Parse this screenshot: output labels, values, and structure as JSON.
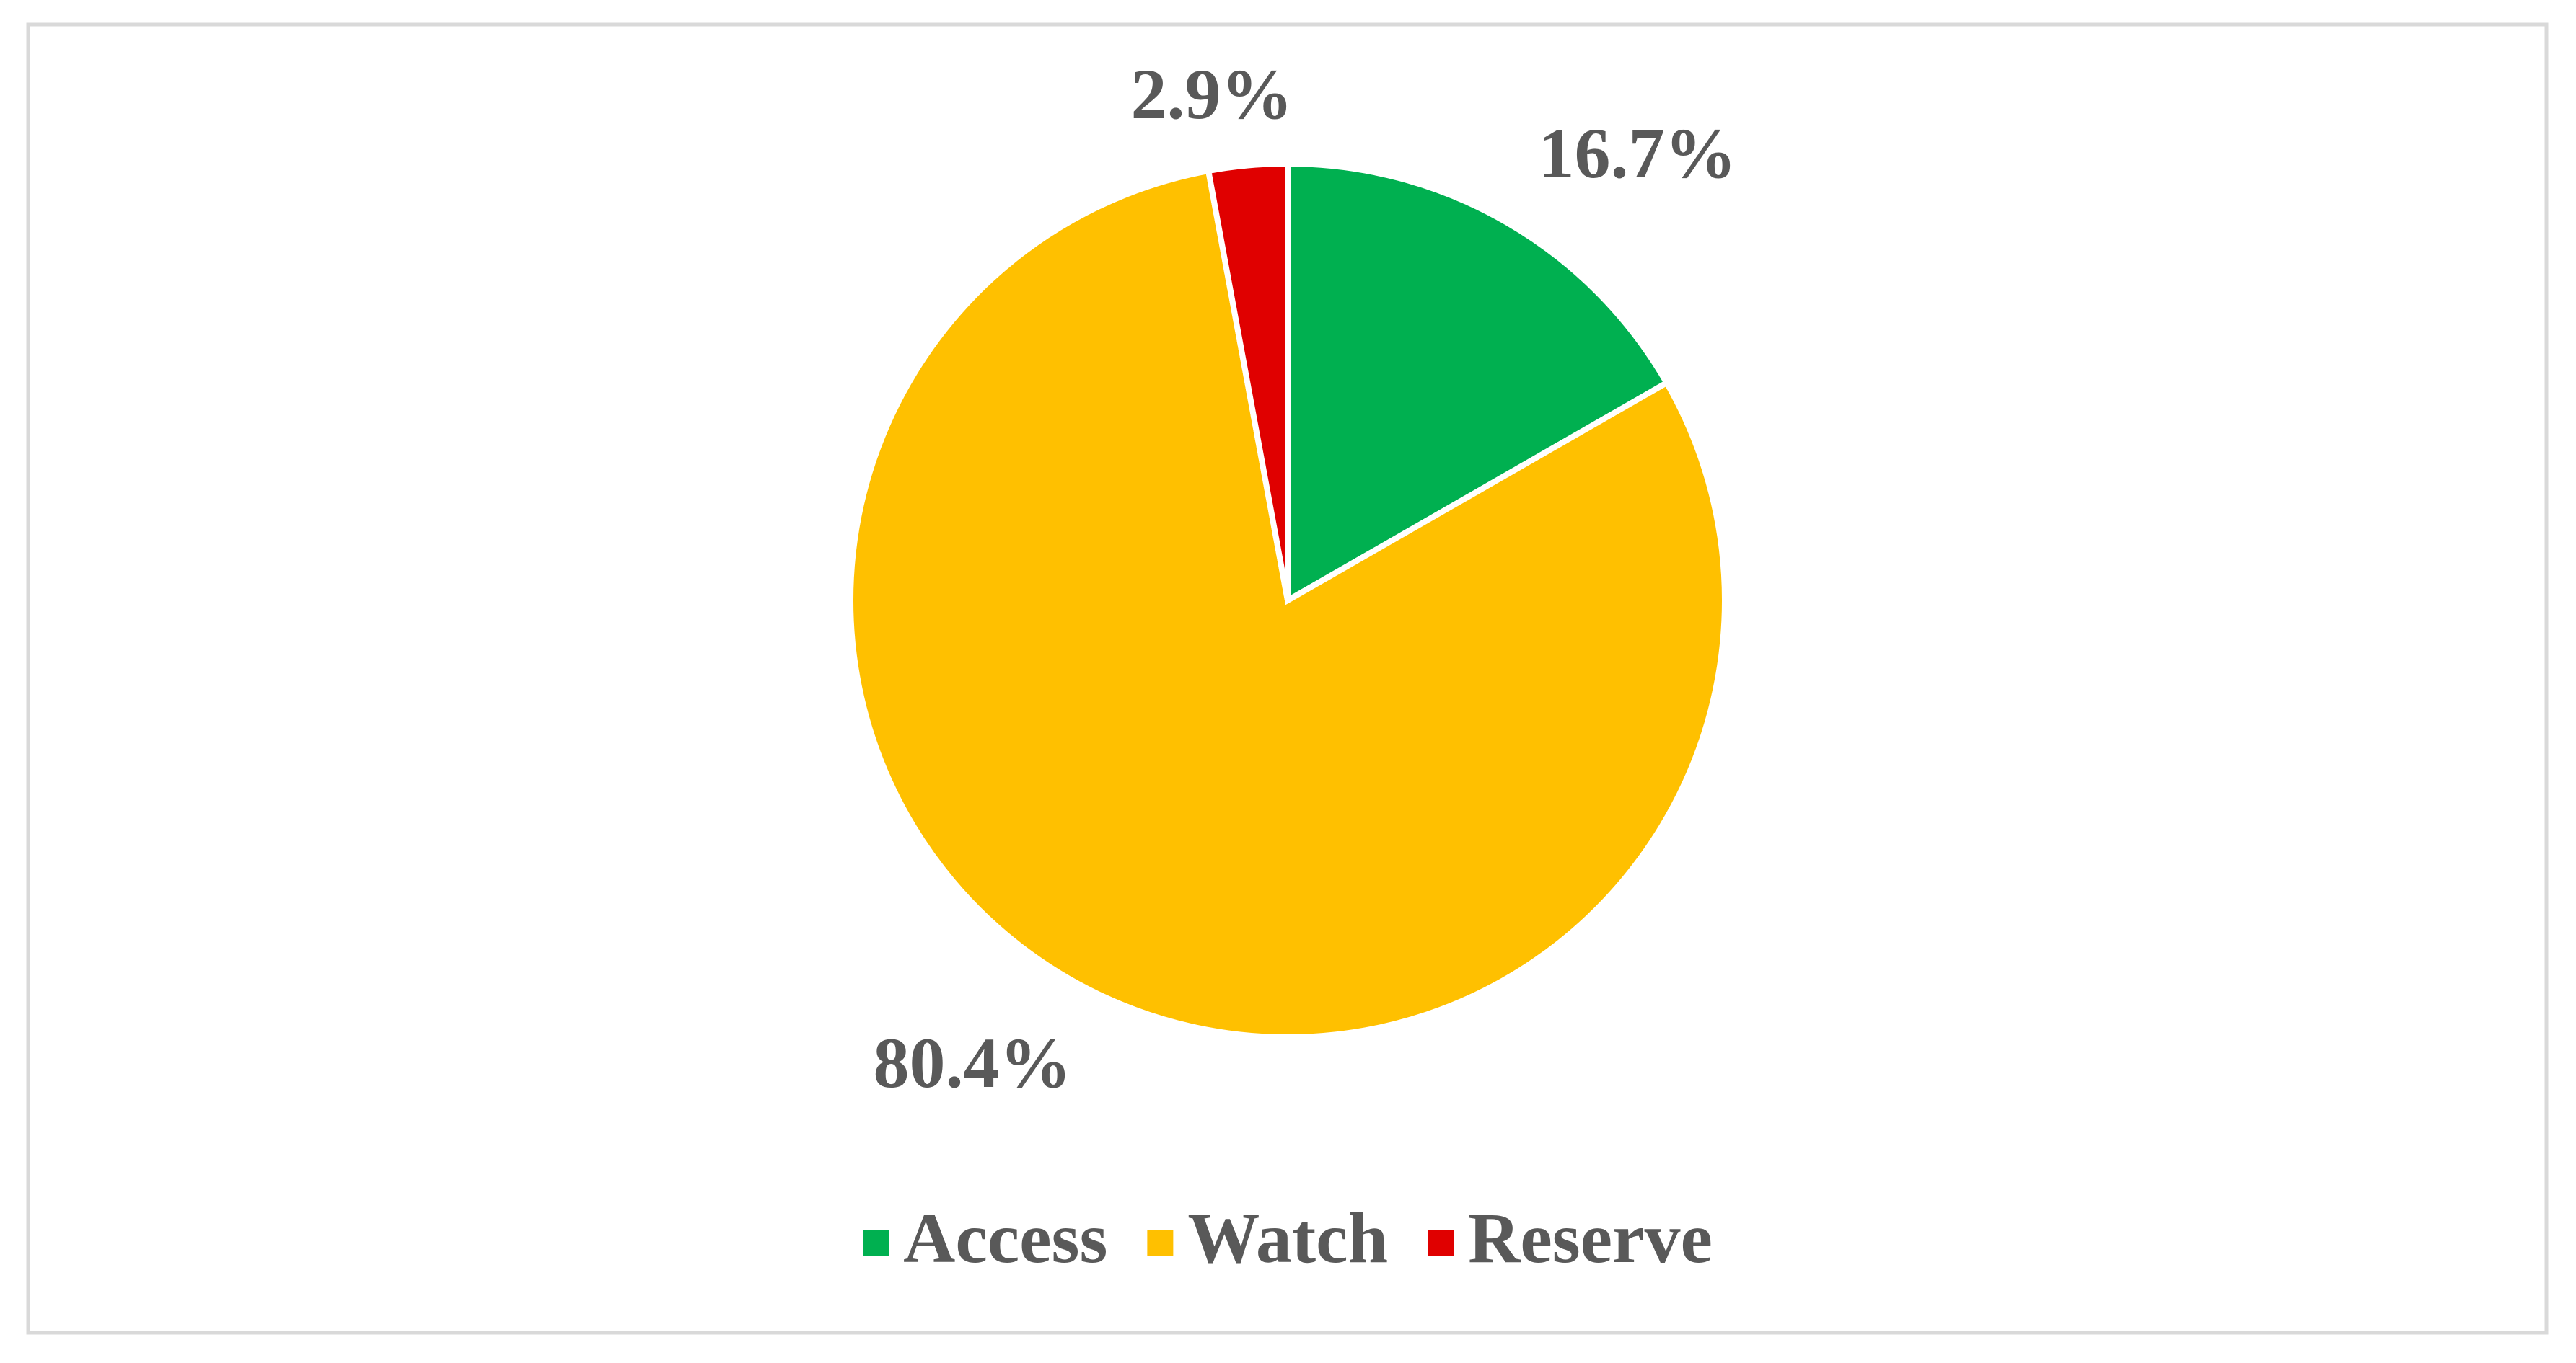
{
  "chart_data": {
    "type": "pie",
    "categories": [
      "Access",
      "Watch",
      "Reserve"
    ],
    "values": [
      16.7,
      80.4,
      2.9
    ],
    "value_labels": [
      "16.7%",
      "80.4%",
      "2.9%"
    ],
    "colors": [
      "#00b050",
      "#ffc000",
      "#e00000"
    ],
    "legend": "bottom"
  }
}
